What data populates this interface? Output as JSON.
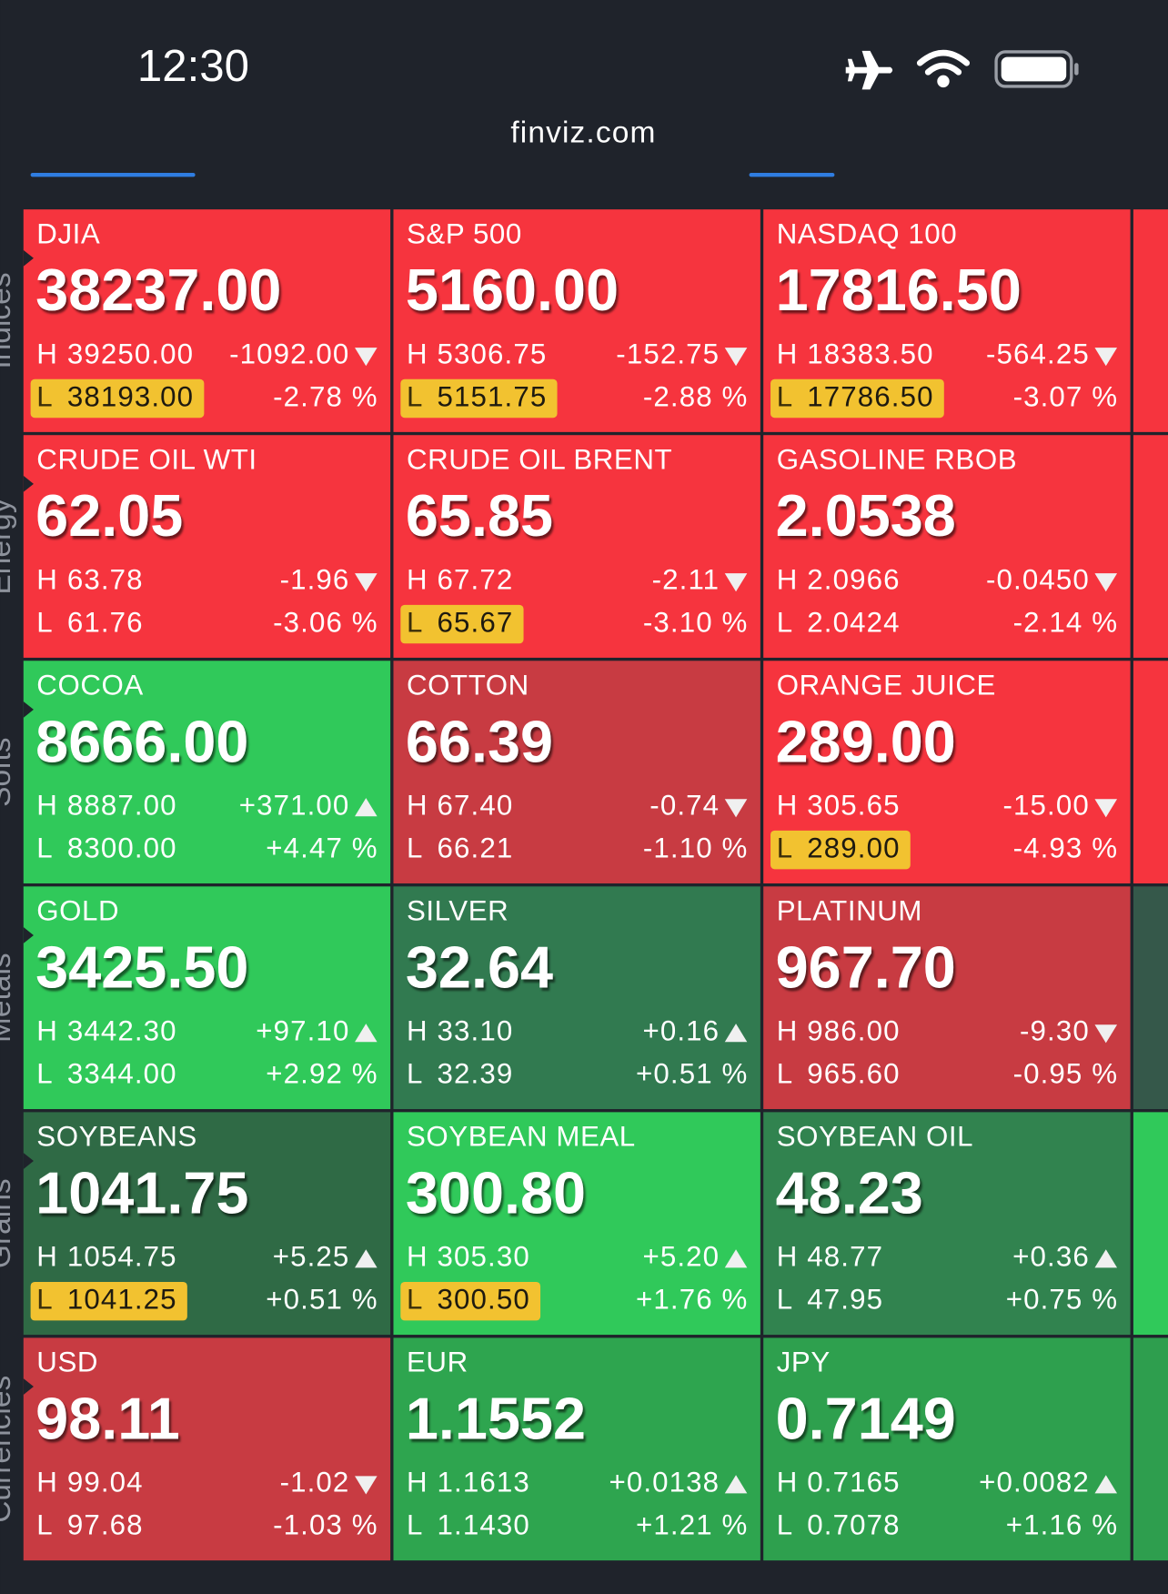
{
  "status": {
    "time": "12:30",
    "url": "finviz.com"
  },
  "high_prefix": "H",
  "low_prefix": "L",
  "sections": [
    {
      "name": "Indices",
      "tiles": [
        {
          "name": "DJIA",
          "price": "38237.00",
          "high": "39250.00",
          "change": "-1092.00",
          "low": "38193.00",
          "change_pct": "-2.78 %",
          "direction": "down",
          "low_highlight": true,
          "color": "#f6343e"
        },
        {
          "name": "S&P 500",
          "price": "5160.00",
          "high": "5306.75",
          "change": "-152.75",
          "low": "5151.75",
          "change_pct": "-2.88 %",
          "direction": "down",
          "low_highlight": true,
          "color": "#f6343e"
        },
        {
          "name": "NASDAQ 100",
          "price": "17816.50",
          "high": "18383.50",
          "change": "-564.25",
          "low": "17786.50",
          "change_pct": "-3.07 %",
          "direction": "down",
          "low_highlight": true,
          "color": "#f6343e"
        }
      ]
    },
    {
      "name": "Energy",
      "tiles": [
        {
          "name": "CRUDE OIL WTI",
          "price": "62.05",
          "high": "63.78",
          "change": "-1.96",
          "low": "61.76",
          "change_pct": "-3.06 %",
          "direction": "down",
          "low_highlight": false,
          "color": "#f6343e"
        },
        {
          "name": "CRUDE OIL BRENT",
          "price": "65.85",
          "high": "67.72",
          "change": "-2.11",
          "low": "65.67",
          "change_pct": "-3.10 %",
          "direction": "down",
          "low_highlight": true,
          "color": "#f6343e"
        },
        {
          "name": "GASOLINE RBOB",
          "price": "2.0538",
          "high": "2.0966",
          "change": "-0.0450",
          "low": "2.0424",
          "change_pct": "-2.14 %",
          "direction": "down",
          "low_highlight": false,
          "color": "#f6343e"
        }
      ]
    },
    {
      "name": "Softs",
      "tiles": [
        {
          "name": "COCOA",
          "price": "8666.00",
          "high": "8887.00",
          "change": "+371.00",
          "low": "8300.00",
          "change_pct": "+4.47 %",
          "direction": "up",
          "low_highlight": false,
          "color": "#30c95a"
        },
        {
          "name": "COTTON",
          "price": "66.39",
          "high": "67.40",
          "change": "-0.74",
          "low": "66.21",
          "change_pct": "-1.10 %",
          "direction": "down",
          "low_highlight": false,
          "color": "#c83b42"
        },
        {
          "name": "ORANGE JUICE",
          "price": "289.00",
          "high": "305.65",
          "change": "-15.00",
          "low": "289.00",
          "change_pct": "-4.93 %",
          "direction": "down",
          "low_highlight": true,
          "color": "#f6343e"
        }
      ]
    },
    {
      "name": "Metals",
      "tiles": [
        {
          "name": "GOLD",
          "price": "3425.50",
          "high": "3442.30",
          "change": "+97.10",
          "low": "3344.00",
          "change_pct": "+2.92 %",
          "direction": "up",
          "low_highlight": false,
          "color": "#30c95a"
        },
        {
          "name": "SILVER",
          "price": "32.64",
          "high": "33.10",
          "change": "+0.16",
          "low": "32.39",
          "change_pct": "+0.51 %",
          "direction": "up",
          "low_highlight": false,
          "color": "#317a50"
        },
        {
          "name": "PLATINUM",
          "price": "967.70",
          "high": "986.00",
          "change": "-9.30",
          "low": "965.60",
          "change_pct": "-0.95 %",
          "direction": "down",
          "low_highlight": false,
          "color": "#c83b42"
        }
      ]
    },
    {
      "name": "Grains",
      "tiles": [
        {
          "name": "SOYBEANS",
          "price": "1041.75",
          "high": "1054.75",
          "change": "+5.25",
          "low": "1041.25",
          "change_pct": "+0.51 %",
          "direction": "up",
          "low_highlight": true,
          "color": "#2f6a45"
        },
        {
          "name": "SOYBEAN MEAL",
          "price": "300.80",
          "high": "305.30",
          "change": "+5.20",
          "low": "300.50",
          "change_pct": "+1.76 %",
          "direction": "up",
          "low_highlight": true,
          "color": "#30c95a"
        },
        {
          "name": "SOYBEAN OIL",
          "price": "48.23",
          "high": "48.77",
          "change": "+0.36",
          "low": "47.95",
          "change_pct": "+0.75 %",
          "direction": "up",
          "low_highlight": false,
          "color": "#31834f"
        }
      ]
    },
    {
      "name": "Currencies",
      "tiles": [
        {
          "name": "USD",
          "price": "98.11",
          "high": "99.04",
          "change": "-1.02",
          "low": "97.68",
          "change_pct": "-1.03 %",
          "direction": "down",
          "low_highlight": false,
          "color": "#c83b42"
        },
        {
          "name": "EUR",
          "price": "1.1552",
          "high": "1.1613",
          "change": "+0.0138",
          "low": "1.1430",
          "change_pct": "+1.21 %",
          "direction": "up",
          "low_highlight": false,
          "color": "#2ea54f"
        },
        {
          "name": "JPY",
          "price": "0.7149",
          "high": "0.7165",
          "change": "+0.0082",
          "low": "0.7078",
          "change_pct": "+1.16 %",
          "direction": "up",
          "low_highlight": false,
          "color": "#2ea04e"
        }
      ]
    }
  ]
}
